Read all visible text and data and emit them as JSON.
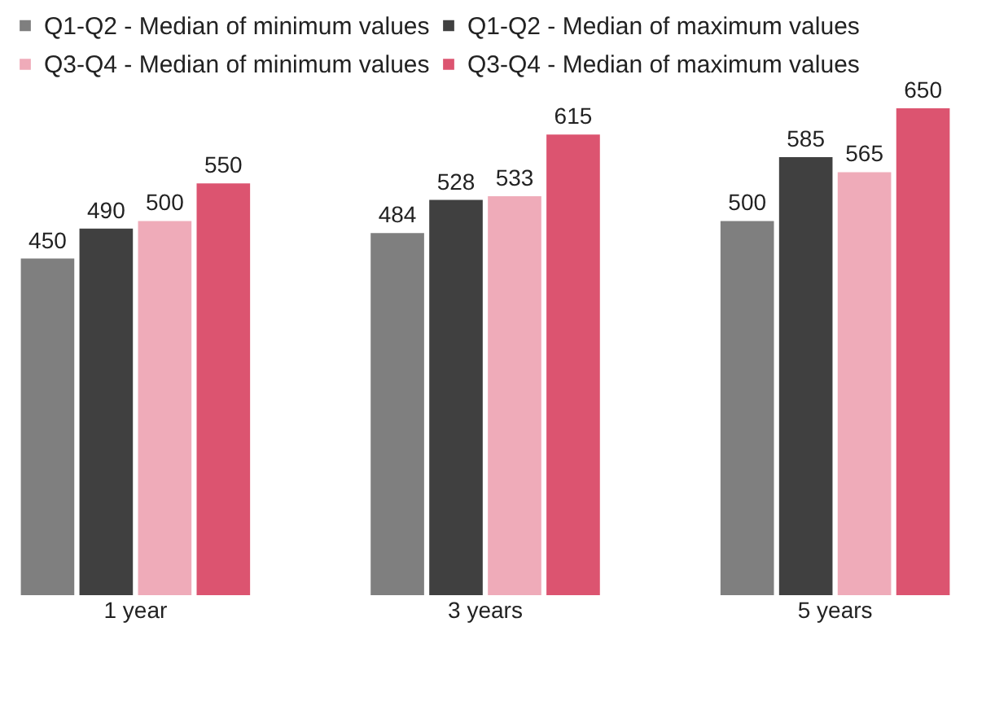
{
  "chart_data": {
    "type": "bar",
    "categories": [
      "1 year",
      "3 years",
      "5 years"
    ],
    "series": [
      {
        "name": "Q1-Q2 - Median of minimum values",
        "color": "#7f7f7f",
        "values": [
          450,
          484,
          500
        ]
      },
      {
        "name": "Q1-Q2 - Median of maximum values",
        "color": "#404040",
        "values": [
          490,
          528,
          585
        ]
      },
      {
        "name": "Q3-Q4 - Median of minimum values",
        "color": "#efabb9",
        "values": [
          500,
          533,
          565
        ]
      },
      {
        "name": "Q3-Q4 - Median of maximum values",
        "color": "#dc5470",
        "values": [
          550,
          615,
          650
        ]
      }
    ],
    "data_labels": true,
    "legend": "top",
    "grid": false
  }
}
